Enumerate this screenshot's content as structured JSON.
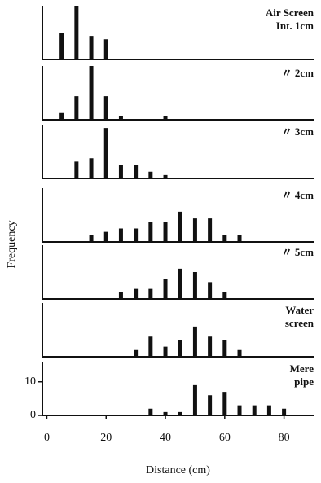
{
  "chart_data": [
    {
      "type": "bar",
      "label": [
        "Air Screen",
        "Int. 1cm"
      ],
      "x": [
        5,
        10,
        15,
        20
      ],
      "values": [
        8,
        16,
        7,
        6
      ],
      "xlim": [
        -1.5,
        90
      ],
      "ylim": [
        0,
        16
      ],
      "color": "#111111"
    },
    {
      "type": "bar",
      "label": [
        "〃 2cm"
      ],
      "x": [
        5,
        10,
        15,
        20,
        25,
        40
      ],
      "values": [
        2,
        7,
        16,
        7,
        1,
        1
      ],
      "xlim": [
        -1.5,
        90
      ],
      "ylim": [
        0,
        16
      ],
      "color": "#111111"
    },
    {
      "type": "bar",
      "label": [
        "〃 3cm"
      ],
      "x": [
        10,
        15,
        20,
        25,
        30,
        35,
        40
      ],
      "values": [
        5,
        6,
        15,
        4,
        4,
        2,
        1
      ],
      "xlim": [
        -1.5,
        90
      ],
      "ylim": [
        0,
        16
      ],
      "color": "#111111"
    },
    {
      "type": "bar",
      "label": [
        "〃 4cm"
      ],
      "x": [
        15,
        20,
        25,
        30,
        35,
        40,
        45,
        50,
        55,
        60,
        65
      ],
      "values": [
        2,
        3,
        4,
        4,
        6,
        6,
        9,
        7,
        7,
        2,
        2
      ],
      "xlim": [
        -1.5,
        90
      ],
      "ylim": [
        0,
        16
      ],
      "color": "#111111"
    },
    {
      "type": "bar",
      "label": [
        "〃 5cm"
      ],
      "x": [
        25,
        30,
        35,
        40,
        45,
        50,
        55,
        60
      ],
      "values": [
        2,
        3,
        3,
        6,
        9,
        8,
        5,
        2
      ],
      "xlim": [
        -1.5,
        90
      ],
      "ylim": [
        0,
        16
      ],
      "color": "#111111"
    },
    {
      "type": "bar",
      "label": [
        "Water",
        "screen"
      ],
      "x": [
        30,
        35,
        40,
        45,
        50,
        55,
        60,
        65
      ],
      "values": [
        2,
        6,
        3,
        5,
        9,
        6,
        5,
        2
      ],
      "xlim": [
        -1.5,
        90
      ],
      "ylim": [
        0,
        16
      ],
      "color": "#111111"
    },
    {
      "type": "bar",
      "label": [
        "Mere",
        "pipe"
      ],
      "x": [
        35,
        40,
        45,
        50,
        55,
        60,
        65,
        70,
        75,
        80
      ],
      "values": [
        2,
        1,
        1,
        9,
        6,
        7,
        3,
        3,
        3,
        2
      ],
      "xlim": [
        -1.5,
        90
      ],
      "ylim": [
        0,
        16
      ],
      "color": "#111111",
      "yticks": [
        0,
        10
      ],
      "xticks": [
        0,
        20,
        40,
        60,
        80
      ],
      "xlabel": "Distance (cm)",
      "ylabel": "Frequency"
    }
  ]
}
